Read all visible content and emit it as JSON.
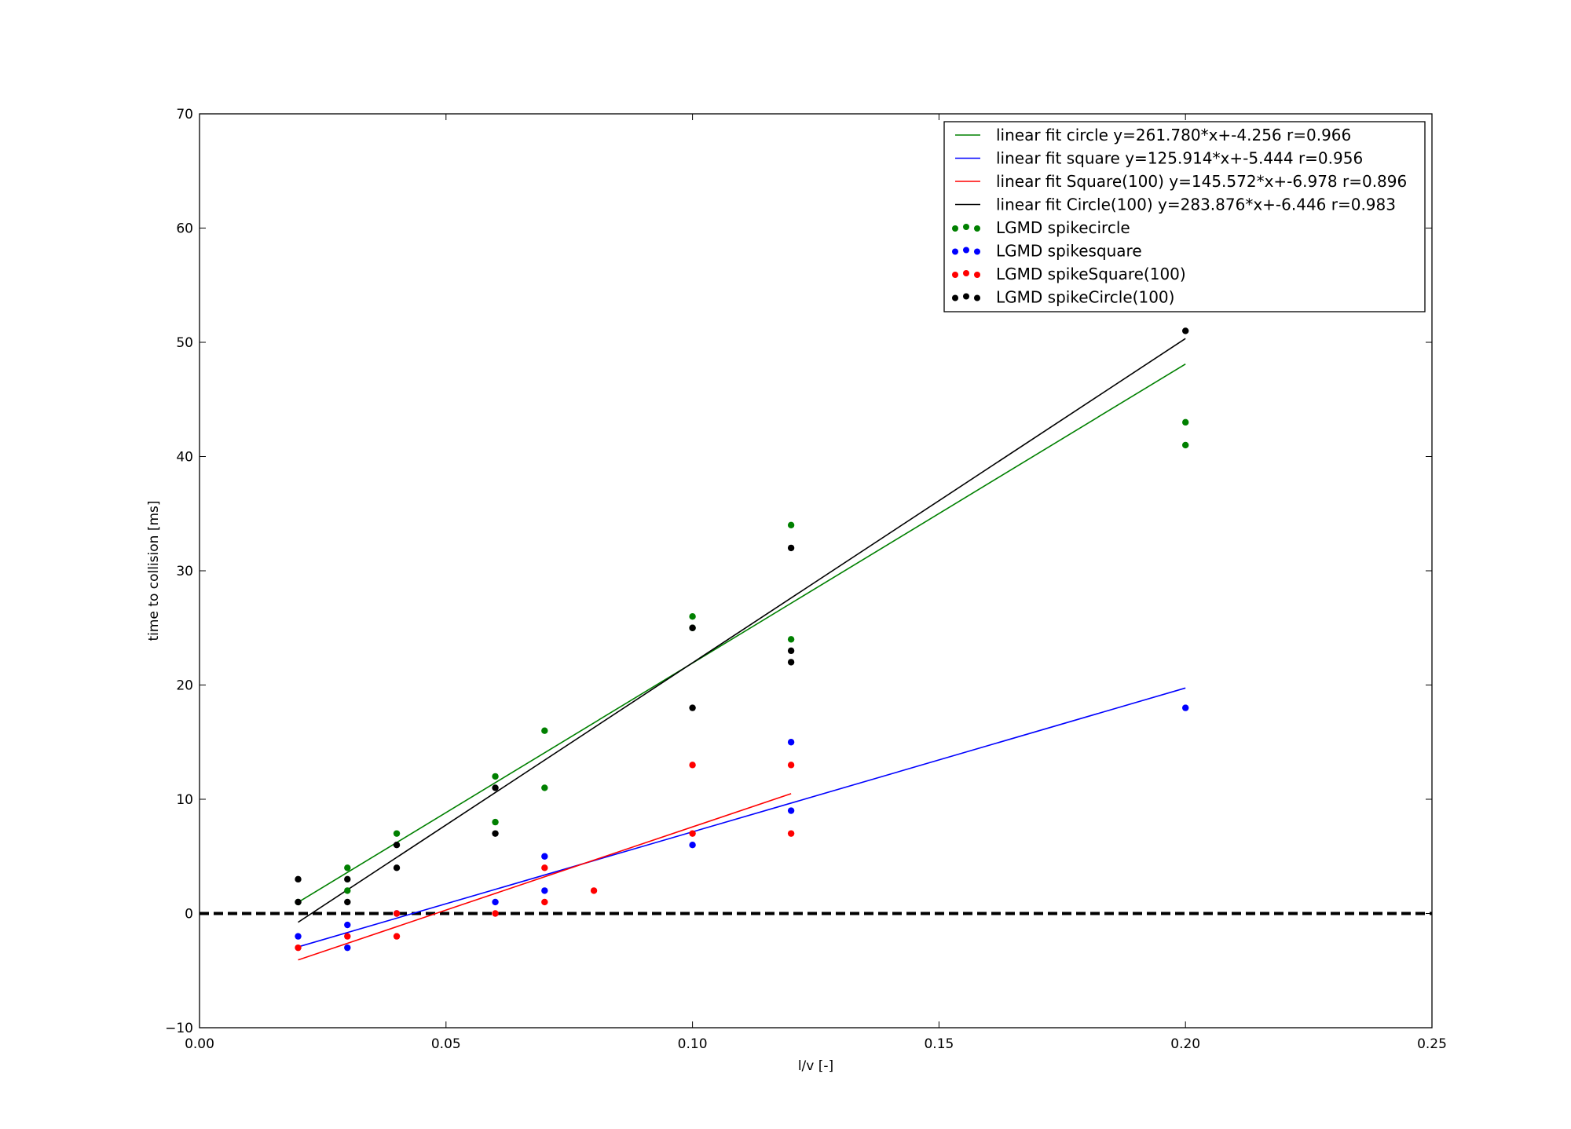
{
  "chart_data": {
    "type": "scatter",
    "title": "",
    "xlabel": "l/v [-]",
    "ylabel": "time to collision [ms]",
    "xlim": [
      0.0,
      0.25
    ],
    "ylim": [
      -10,
      70
    ],
    "x_ticks": [
      0.0,
      0.05,
      0.1,
      0.15,
      0.2,
      0.25
    ],
    "x_tick_labels": [
      "0.00",
      "0.05",
      "0.10",
      "0.15",
      "0.20",
      "0.25"
    ],
    "y_ticks": [
      -10,
      0,
      10,
      20,
      30,
      40,
      50,
      60,
      70
    ],
    "y_tick_labels": [
      "−10",
      "0",
      "10",
      "20",
      "30",
      "40",
      "50",
      "60",
      "70"
    ],
    "grid": false,
    "legend_position": "top-right",
    "reference_line": {
      "y": 0,
      "style": "dashed",
      "color": "#000000"
    },
    "fit_lines": [
      {
        "name": "linear fit circle y=261.780*x+-4.256  r=0.966",
        "slope": 261.78,
        "intercept": -4.256,
        "x_range": [
          0.02,
          0.2
        ],
        "color": "#008000"
      },
      {
        "name": "linear fit square y=125.914*x+-5.444  r=0.956",
        "slope": 125.914,
        "intercept": -5.444,
        "x_range": [
          0.02,
          0.2
        ],
        "color": "#0000ff"
      },
      {
        "name": "linear fit Square(100) y=145.572*x+-6.978  r=0.896",
        "slope": 145.572,
        "intercept": -6.978,
        "x_range": [
          0.02,
          0.12
        ],
        "color": "#ff0000"
      },
      {
        "name": "linear fit Circle(100) y=283.876*x+-6.446  r=0.983",
        "slope": 283.876,
        "intercept": -6.446,
        "x_range": [
          0.02,
          0.2
        ],
        "color": "#000000"
      }
    ],
    "series": [
      {
        "name": "LGMD spikecircle",
        "color": "#008000",
        "points": [
          [
            0.02,
            1
          ],
          [
            0.03,
            4
          ],
          [
            0.03,
            2
          ],
          [
            0.04,
            7
          ],
          [
            0.06,
            12
          ],
          [
            0.06,
            8
          ],
          [
            0.07,
            16
          ],
          [
            0.07,
            11
          ],
          [
            0.1,
            26
          ],
          [
            0.1,
            25
          ],
          [
            0.12,
            34
          ],
          [
            0.12,
            24
          ],
          [
            0.2,
            43
          ],
          [
            0.2,
            41
          ]
        ]
      },
      {
        "name": "LGMD spikesquare",
        "color": "#0000ff",
        "points": [
          [
            0.02,
            -2
          ],
          [
            0.03,
            -1
          ],
          [
            0.03,
            -3
          ],
          [
            0.04,
            0
          ],
          [
            0.06,
            1
          ],
          [
            0.07,
            5
          ],
          [
            0.07,
            2
          ],
          [
            0.1,
            6
          ],
          [
            0.12,
            15
          ],
          [
            0.12,
            9
          ],
          [
            0.2,
            18
          ]
        ]
      },
      {
        "name": "LGMD spikeSquare(100)",
        "color": "#ff0000",
        "points": [
          [
            0.02,
            -3
          ],
          [
            0.03,
            -2
          ],
          [
            0.04,
            0
          ],
          [
            0.04,
            -2
          ],
          [
            0.06,
            0
          ],
          [
            0.07,
            4
          ],
          [
            0.07,
            1
          ],
          [
            0.08,
            2
          ],
          [
            0.1,
            13
          ],
          [
            0.1,
            7
          ],
          [
            0.12,
            13
          ],
          [
            0.12,
            7
          ]
        ]
      },
      {
        "name": "LGMD spikeCircle(100)",
        "color": "#000000",
        "points": [
          [
            0.02,
            3
          ],
          [
            0.02,
            1
          ],
          [
            0.03,
            3
          ],
          [
            0.03,
            1
          ],
          [
            0.04,
            6
          ],
          [
            0.04,
            4
          ],
          [
            0.06,
            11
          ],
          [
            0.06,
            7
          ],
          [
            0.1,
            25
          ],
          [
            0.1,
            18
          ],
          [
            0.12,
            32
          ],
          [
            0.12,
            23
          ],
          [
            0.12,
            22
          ],
          [
            0.2,
            51
          ]
        ]
      }
    ]
  }
}
